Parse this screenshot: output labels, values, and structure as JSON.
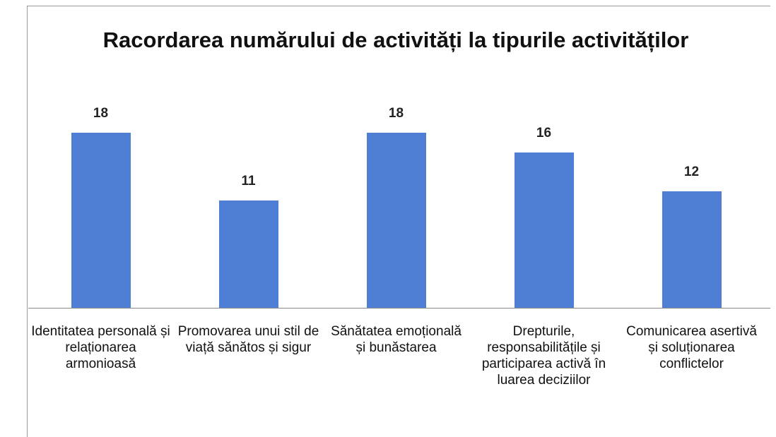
{
  "chart_data": {
    "type": "bar",
    "title": "Racordarea numărului de activități la tipurile activităților",
    "categories": [
      "Identitatea personală și relaționarea armonioasă",
      "Promovarea unui stil de viață sănătos și sigur",
      "Sănătatea emoțională și bunăstarea",
      "Drepturile, responsabilitățile și participarea activă în luarea deciziilor",
      "Comunicarea asertivă și soluționarea conflictelor"
    ],
    "values": [
      18,
      11,
      18,
      16,
      12
    ],
    "color": "#4f7fd4"
  }
}
